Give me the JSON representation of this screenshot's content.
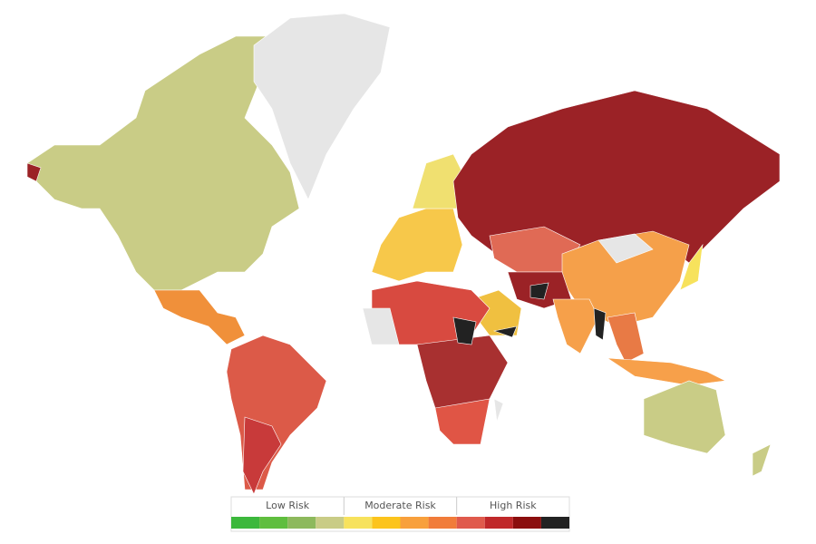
{
  "legend": {
    "groups": [
      {
        "label": "Low Risk",
        "colors": [
          "#3cb83c",
          "#5fbe3e",
          "#8db95c",
          "#c9cc86"
        ]
      },
      {
        "label": "Moderate Risk",
        "colors": [
          "#f7e25c",
          "#fcc41c",
          "#f8a03c",
          "#f17c3a"
        ]
      },
      {
        "label": "High Risk",
        "colors": [
          "#e05a4c",
          "#c0282a",
          "#8b0e0e",
          "#222222"
        ]
      }
    ]
  }
}
